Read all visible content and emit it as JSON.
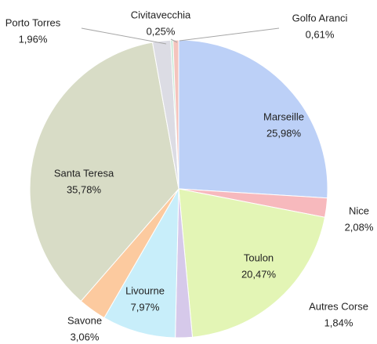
{
  "chart_data": {
    "type": "pie",
    "categories": [
      "Marseille",
      "Nice",
      "Toulon",
      "Autres Corse",
      "Livourne",
      "Savone",
      "Santa Teresa",
      "Porto Torres",
      "Civitavecchia",
      "Golfo Aranci"
    ],
    "values": [
      25.98,
      2.08,
      20.47,
      1.84,
      7.97,
      3.06,
      35.78,
      1.96,
      0.25,
      0.61
    ],
    "value_labels": [
      "25,98%",
      "2,08%",
      "20,47%",
      "1,84%",
      "7,97%",
      "3,06%",
      "35,78%",
      "1,96%",
      "0,25%",
      "0,61%"
    ],
    "colors": [
      "#bcd0f7",
      "#f7b9bd",
      "#e3f5b5",
      "#d6c9ea",
      "#c8eefa",
      "#fcca9f",
      "#d8dcc6",
      "#dcdce4",
      "#c6ead6",
      "#f4c4bd"
    ]
  }
}
